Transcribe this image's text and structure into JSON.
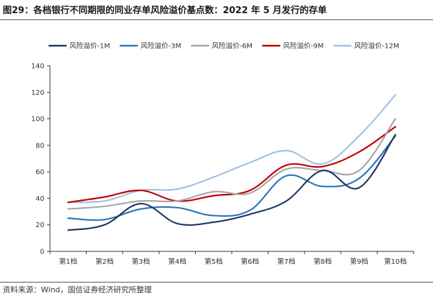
{
  "figure": {
    "title": "图29：各档银行不同期限的同业存单风险溢价基点数：2022 年 5 月发行的存单",
    "source": "资料来源：Wind，国信证券经济研究所整理"
  },
  "chart_data": {
    "type": "line",
    "title": "",
    "xlabel": "",
    "ylabel": "",
    "categories": [
      "第1档",
      "第2档",
      "第3档",
      "第4档",
      "第5档",
      "第6档",
      "第7档",
      "第8档",
      "第9档",
      "第10档"
    ],
    "ylim": [
      0,
      140
    ],
    "yticks": [
      0,
      20,
      40,
      60,
      80,
      100,
      120,
      140
    ],
    "grid": false,
    "legend_position": "top",
    "series": [
      {
        "name": "风险溢价-1M",
        "color": "#1f3864",
        "values": [
          16,
          20,
          36,
          21,
          22,
          28,
          38,
          61,
          48,
          88
        ]
      },
      {
        "name": "风险溢价-3M",
        "color": "#2e75b6",
        "values": [
          25,
          24,
          32,
          33,
          27,
          31,
          57,
          49,
          55,
          87
        ]
      },
      {
        "name": "风险溢价-6M",
        "color": "#a6a6a6",
        "values": [
          32,
          34,
          38,
          38,
          45,
          44,
          62,
          61,
          61,
          100
        ]
      },
      {
        "name": "风险溢价-9M",
        "color": "#c00000",
        "values": [
          37,
          41,
          46,
          38,
          42,
          46,
          65,
          64,
          75,
          94
        ]
      },
      {
        "name": "风险溢价-12M",
        "color": "#9dc3e6",
        "values": [
          37,
          38,
          46,
          47,
          56,
          67,
          76,
          66,
          87,
          118
        ]
      }
    ]
  }
}
